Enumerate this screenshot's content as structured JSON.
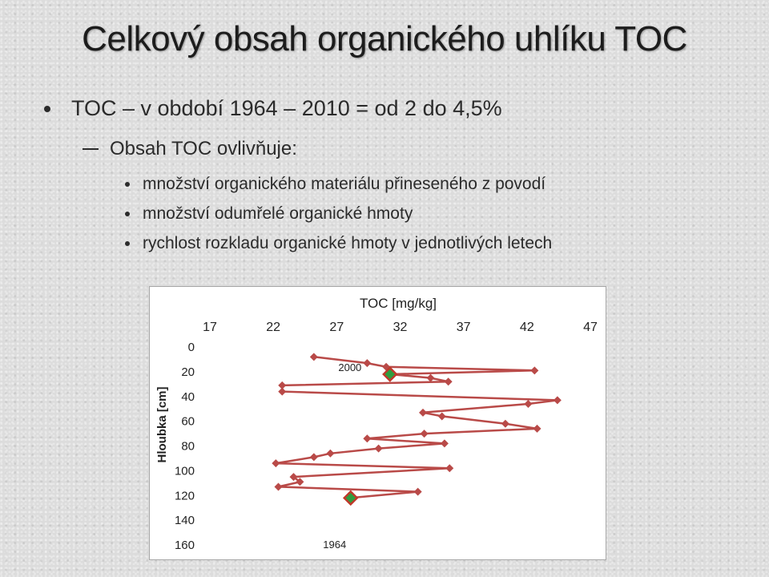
{
  "slide": {
    "title": "Celkový obsah organického uhlíku TOC",
    "bullet1": "TOC – v období 1964 – 2010 = od 2 do 4,5%",
    "bullet2": "Obsah TOC ovlivňuje:",
    "bullets3": [
      "množství organického materiálu přineseného z povodí",
      "množství odumřelé organické hmoty",
      "rychlost rozkladu organické hmoty v jednotlivých letech"
    ]
  },
  "chart_data": {
    "type": "line",
    "title": "TOC [mg/kg]",
    "xlabel": "TOC [mg/kg]",
    "ylabel": "Hloubka [cm]",
    "xlim": [
      17,
      47
    ],
    "ylim": [
      0,
      160
    ],
    "x_ticks": [
      "17",
      "22",
      "27",
      "32",
      "37",
      "42",
      "47"
    ],
    "y_ticks": [
      "0",
      "20",
      "40",
      "60",
      "80",
      "100",
      "120",
      "140",
      "160"
    ],
    "y_inverted": true,
    "x_axis_position": "top",
    "grid": false,
    "colors": {
      "line": "#b94a48",
      "marker": "#b94a48",
      "highlight_fill": "#2e9e3f",
      "highlight_border": "#c0392b"
    },
    "series": [
      {
        "x": [
          25.2,
          29.4,
          30.9,
          42.6,
          31.2,
          34.4,
          35.8,
          22.7,
          22.7,
          44.4,
          42.1,
          33.8,
          35.3,
          40.3,
          42.8,
          33.9,
          29.4,
          35.5,
          30.3,
          26.5,
          25.2,
          22.2,
          35.9,
          23.6,
          24.1,
          22.4,
          33.4,
          28.1
        ],
        "y": [
          8,
          13,
          16,
          19,
          22,
          25,
          28,
          31,
          36,
          43,
          46,
          53,
          56,
          62,
          66,
          70,
          74,
          78,
          82,
          86,
          89,
          94,
          98,
          105,
          109,
          113,
          117,
          122
        ]
      }
    ],
    "highlights": [
      {
        "label": "2000",
        "x": 31.2,
        "y": 22
      },
      {
        "label": "1964",
        "x": 28.1,
        "y": 122
      }
    ]
  }
}
